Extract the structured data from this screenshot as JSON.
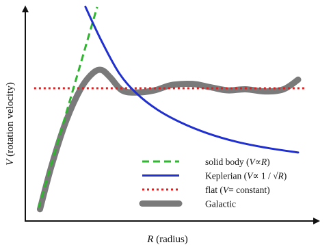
{
  "chart_data": {
    "type": "line",
    "title": "",
    "xlabel": "R (radius)",
    "ylabel": "V (rotation velocity)",
    "xlabel_parts": {
      "symbol": "R",
      "rest": " (radius)"
    },
    "ylabel_parts": {
      "symbol": "V",
      "rest": " (rotation velocity)"
    },
    "grid": false,
    "legend_position": "bottom-right",
    "xlim": [
      0,
      10
    ],
    "ylim": [
      0,
      10
    ],
    "series": [
      {
        "name": "solid body (V∝R)",
        "legend_parts": [
          "solid body (",
          "V",
          "∝",
          "R",
          ")"
        ],
        "color": "#2fb52f",
        "style": "dashed",
        "x": [
          0.45,
          2.45
        ],
        "y": [
          0.6,
          10.0
        ]
      },
      {
        "name": "Keplerian (V∝1/√R)",
        "legend_parts": [
          "Keplerian (",
          "V",
          "∝ 1 / √",
          "R",
          ")"
        ],
        "color": "#1f2fd0",
        "style": "solid",
        "x": [
          2.05,
          2.6,
          3.2,
          3.8,
          4.5,
          5.3,
          6.2,
          7.2,
          8.3,
          9.3
        ],
        "y": [
          10.0,
          8.4,
          6.9,
          5.95,
          5.2,
          4.6,
          4.1,
          3.7,
          3.4,
          3.2
        ]
      },
      {
        "name": "flat (V= constant)",
        "legend_parts": [
          "flat (",
          "V",
          "= constant)",
          "",
          ""
        ],
        "color": "#e02020",
        "style": "dotted",
        "x": [
          0.3,
          9.6
        ],
        "y": [
          6.2,
          6.2
        ]
      },
      {
        "name": "Galactic",
        "legend_parts": [
          "Galactic",
          "",
          "",
          "",
          ""
        ],
        "color": "#7a7a7a",
        "style": "solid-thick",
        "x": [
          0.5,
          0.9,
          1.4,
          1.9,
          2.3,
          2.6,
          2.9,
          3.3,
          3.8,
          4.4,
          5.0,
          5.7,
          6.3,
          6.9,
          7.5,
          8.2,
          8.8,
          9.3
        ],
        "y": [
          0.55,
          2.6,
          4.7,
          6.2,
          6.9,
          7.05,
          6.7,
          6.1,
          6.0,
          6.1,
          6.35,
          6.4,
          6.25,
          6.1,
          6.15,
          6.05,
          6.15,
          6.6
        ]
      }
    ]
  }
}
